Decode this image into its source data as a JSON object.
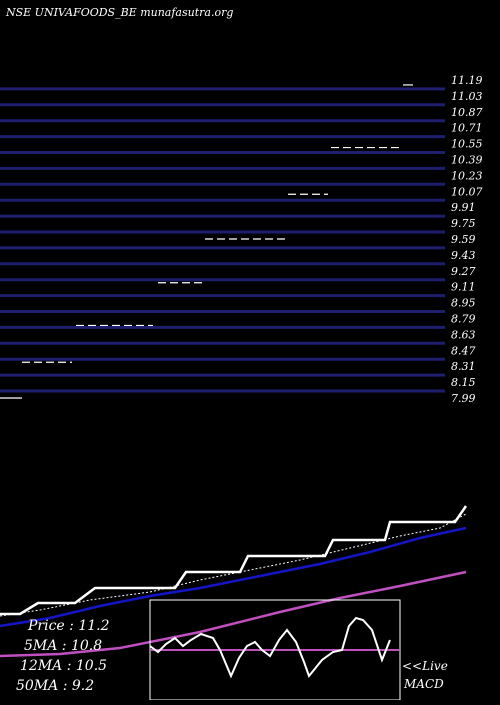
{
  "header": {
    "title": "NSE UNIVAFOODS_BE munafasutra.org"
  },
  "colors": {
    "background": "#000000",
    "band": "#1e1e6e",
    "text": "#ffffff",
    "price_line": "#ffffff",
    "ma5_line": "#ffffff",
    "ma12_line": "#1515c8",
    "ma50_line": "#c050c0",
    "macd_line": "#ffffff",
    "macd_signal": "#c050c0"
  },
  "chart_data": {
    "type": "line",
    "price_levels": [
      "11.19",
      "11.03",
      "10.87",
      "10.71",
      "10.55",
      "10.39",
      "10.23",
      "10.07",
      "9.91",
      "9.75",
      "9.59",
      "9.43",
      "9.27",
      "9.11",
      "8.95",
      "8.79",
      "8.63",
      "8.47",
      "8.31",
      "8.15",
      "7.99"
    ],
    "price_segments": [
      {
        "x0": 0,
        "x1": 22,
        "price": 7.99
      },
      {
        "x0": 22,
        "x1": 72,
        "price": 8.35
      },
      {
        "x0": 76,
        "x1": 153,
        "price": 8.72
      },
      {
        "x0": 158,
        "x1": 202,
        "price": 9.15
      },
      {
        "x0": 205,
        "x1": 286,
        "price": 9.59
      },
      {
        "x0": 288,
        "x1": 328,
        "price": 10.04
      },
      {
        "x0": 331,
        "x1": 400,
        "price": 10.51
      },
      {
        "x0": 403,
        "x1": 413,
        "price": 11.14
      }
    ],
    "legend": {
      "price": "Price   : 11.2",
      "ma5": "5MA : 10.8",
      "ma12": "12MA : 10.5",
      "ma50": "50MA : 9.2"
    },
    "ma_panel": {
      "price": [
        [
          0,
          614
        ],
        [
          20,
          614
        ],
        [
          38,
          603
        ],
        [
          75,
          603
        ],
        [
          95,
          588
        ],
        [
          175,
          588
        ],
        [
          186,
          572
        ],
        [
          240,
          572
        ],
        [
          248,
          556
        ],
        [
          325,
          556
        ],
        [
          333,
          540
        ],
        [
          385,
          540
        ],
        [
          390,
          522
        ],
        [
          455,
          522
        ],
        [
          466,
          506
        ]
      ],
      "ma5": [
        [
          0,
          616
        ],
        [
          40,
          610
        ],
        [
          90,
          600
        ],
        [
          150,
          592
        ],
        [
          200,
          580
        ],
        [
          250,
          570
        ],
        [
          300,
          560
        ],
        [
          350,
          548
        ],
        [
          400,
          536
        ],
        [
          440,
          528
        ],
        [
          466,
          514
        ]
      ],
      "ma12": [
        [
          0,
          626
        ],
        [
          50,
          618
        ],
        [
          100,
          606
        ],
        [
          150,
          596
        ],
        [
          200,
          588
        ],
        [
          260,
          576
        ],
        [
          320,
          564
        ],
        [
          370,
          552
        ],
        [
          420,
          538
        ],
        [
          466,
          528
        ]
      ],
      "ma50": [
        [
          0,
          656
        ],
        [
          60,
          654
        ],
        [
          120,
          648
        ],
        [
          200,
          632
        ],
        [
          280,
          612
        ],
        [
          340,
          598
        ],
        [
          400,
          586
        ],
        [
          466,
          572
        ]
      ]
    },
    "macd": {
      "label_live": "<<Live",
      "label": "MACD",
      "signal_y": 650,
      "line": [
        [
          150,
          646
        ],
        [
          158,
          652
        ],
        [
          166,
          644
        ],
        [
          175,
          638
        ],
        [
          183,
          646
        ],
        [
          191,
          640
        ],
        [
          201,
          634
        ],
        [
          213,
          638
        ],
        [
          220,
          650
        ],
        [
          231,
          676
        ],
        [
          239,
          658
        ],
        [
          247,
          646
        ],
        [
          255,
          642
        ],
        [
          262,
          650
        ],
        [
          270,
          656
        ],
        [
          279,
          640
        ],
        [
          287,
          630
        ],
        [
          296,
          642
        ],
        [
          304,
          662
        ],
        [
          309,
          676
        ],
        [
          322,
          660
        ],
        [
          333,
          652
        ],
        [
          342,
          650
        ],
        [
          349,
          626
        ],
        [
          356,
          618
        ],
        [
          363,
          620
        ],
        [
          372,
          630
        ],
        [
          382,
          660
        ],
        [
          390,
          640
        ]
      ]
    }
  }
}
